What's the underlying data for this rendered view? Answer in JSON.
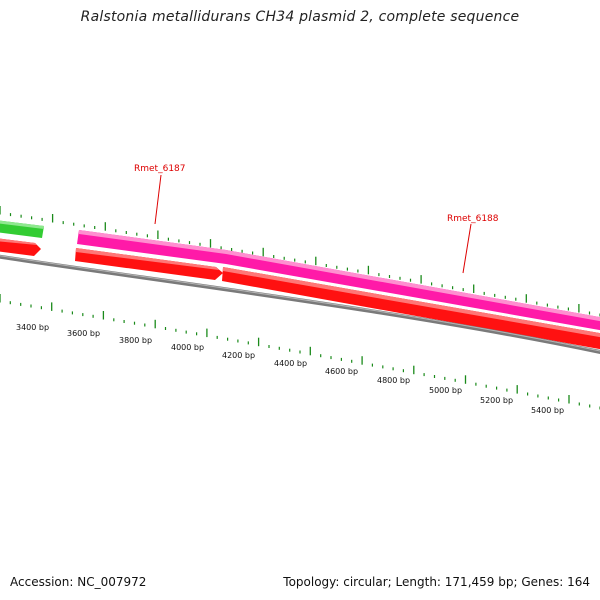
{
  "title": "Ralstonia metallidurans CH34 plasmid 2, complete sequence",
  "footer": {
    "accession": "Accession: NC_007972",
    "summary": "Topology: circular; Length: 171,459 bp; Genes: 164"
  },
  "colors": {
    "tick": "#1a8a1a",
    "backbone": "#808080",
    "gene_forward": "#ff1aa8",
    "gene_reverse": "#ff0000",
    "gene_other": "#33cc33",
    "gene_label": "#dd0000"
  },
  "scale_labels": [
    "3400 bp",
    "3600 bp",
    "3800 bp",
    "4000 bp",
    "4200 bp",
    "4400 bp",
    "4600 bp",
    "4800 bp",
    "5000 bp",
    "5200 bp",
    "5400 bp"
  ],
  "gene_labels": [
    "Rmet_6187",
    "Rmet_6188"
  ],
  "icons": [
    "circular-map"
  ]
}
